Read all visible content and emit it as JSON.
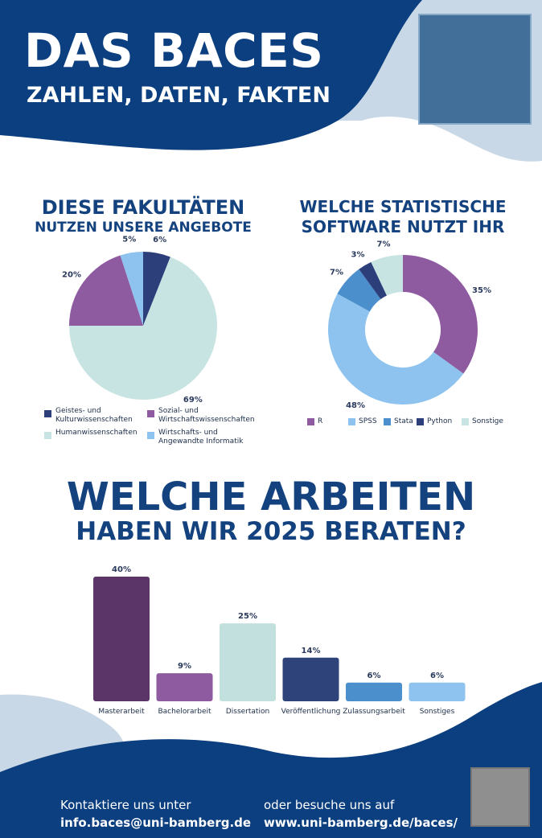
{
  "header": {
    "title": "DAS BACES",
    "subtitle": "ZAHLEN, DATEN, FAKTEN"
  },
  "fakultaeten": {
    "title_line1": "DIESE FAKULTÄTEN",
    "title_line2": "NUTZEN UNSERE ANGEBOTE"
  },
  "software": {
    "title_line1": "WELCHE STATISTISCHE",
    "title_line2": "SOFTWARE NUTZT IHR"
  },
  "arbeiten": {
    "title_line1": "WELCHE ARBEITEN",
    "title_line2": "HABEN WIR 2025 BERATEN?"
  },
  "footer": {
    "left_label": "Kontaktiere uns unter",
    "left_value": "info.baces@uni-bamberg.de",
    "right_label": "oder besuche uns auf",
    "right_value": "www.uni-bamberg.de/baces/"
  },
  "chart_data": [
    {
      "type": "pie",
      "title": "DIESE FAKULTÄTEN NUTZEN UNSERE ANGEBOTE",
      "labels": [
        "Geistes- und Kulturwissenschaften",
        "Humanwissenschaften",
        "Sozial- und Wirtschaftswissenschaften",
        "Wirtschafts- und Angewandte Informatik"
      ],
      "legend_lines": [
        [
          "Geistes- und",
          "Kulturwissenschaften"
        ],
        [
          "Humanwissenschaften"
        ],
        [
          "Sozial- und",
          "Wirtschaftswissenschaften"
        ],
        [
          "Wirtschafts- und",
          "Angewandte Informatik"
        ]
      ],
      "values": [
        6,
        69,
        20,
        5
      ],
      "value_labels": [
        "6%",
        "69%",
        "20%",
        "5%"
      ],
      "colors": [
        "#2d3f7a",
        "#c8e4e2",
        "#8e5aa0",
        "#8dc3ee"
      ]
    },
    {
      "type": "pie",
      "variant": "donut",
      "title": "WELCHE STATISTISCHE SOFTWARE NUTZT IHR",
      "labels": [
        "R",
        "SPSS",
        "Stata",
        "Python",
        "Sonstige"
      ],
      "values": [
        35,
        48,
        7,
        3,
        7
      ],
      "value_labels": [
        "35%",
        "48%",
        "7%",
        "3%",
        "7%"
      ],
      "colors": [
        "#8e5aa0",
        "#8dc3ee",
        "#4b8fcd",
        "#2d3f7a",
        "#c8e4e2"
      ]
    },
    {
      "type": "bar",
      "title": "WELCHE ARBEITEN HABEN WIR 2025 BERATEN?",
      "categories": [
        "Masterarbeit",
        "Bachelorarbeit",
        "Dissertation",
        "Veröffentlichung",
        "Zulassungsarbeit",
        "Sonstiges"
      ],
      "values": [
        40,
        9,
        25,
        14,
        6,
        6
      ],
      "value_labels": [
        "40%",
        "9%",
        "25%",
        "14%",
        "6%",
        "6%"
      ],
      "colors": [
        "#5b3468",
        "#8e5aa0",
        "#c1e0de",
        "#2e4379",
        "#4b8fcd",
        "#8dc3ee"
      ],
      "ylim": [
        0,
        40
      ]
    }
  ]
}
